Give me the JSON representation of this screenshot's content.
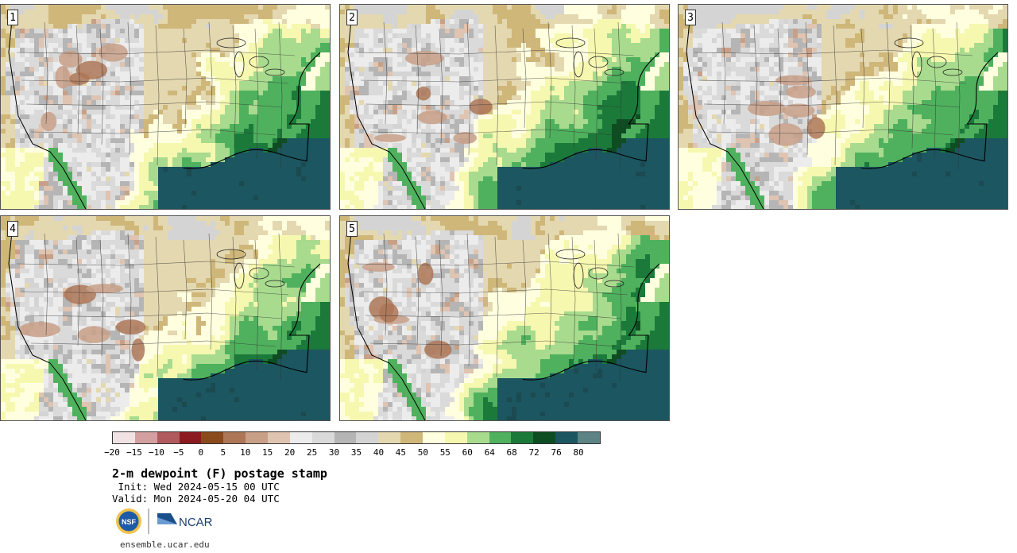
{
  "panels": [
    {
      "label": "1",
      "moist_shift": 0.0
    },
    {
      "label": "2",
      "moist_shift": 0.06
    },
    {
      "label": "3",
      "moist_shift": 0.03
    },
    {
      "label": "4",
      "moist_shift": -0.02
    },
    {
      "label": "5",
      "moist_shift": 0.05
    }
  ],
  "legend": {
    "colors": [
      "#f1e3e3",
      "#d49fa0",
      "#b05a5e",
      "#8c1b20",
      "#8a4a1c",
      "#ad7757",
      "#c8a088",
      "#dfc4b1",
      "#ececec",
      "#dadada",
      "#b5b5b5",
      "#d4d4d4",
      "#e4d8b0",
      "#cfb77a",
      "#ffffe0",
      "#f6f8b0",
      "#a8db8e",
      "#4fb15e",
      "#1b7a3a",
      "#0e4d22",
      "#1c5660",
      "#5c8484"
    ],
    "ticks": [
      "−20",
      "−15",
      "−10",
      "−5",
      "0",
      "5",
      "10",
      "15",
      "20",
      "25",
      "30",
      "35",
      "40",
      "45",
      "50",
      "55",
      "60",
      "64",
      "68",
      "72",
      "76",
      "80"
    ]
  },
  "title": "2-m dewpoint (F) postage stamp",
  "init": " Init: Wed 2024-05-15 00 UTC",
  "valid": "Valid: Mon 2024-05-20 04 UTC",
  "logos": {
    "nsf": "NSF",
    "ncar": "NCAR"
  },
  "site": "ensemble.ucar.edu"
}
